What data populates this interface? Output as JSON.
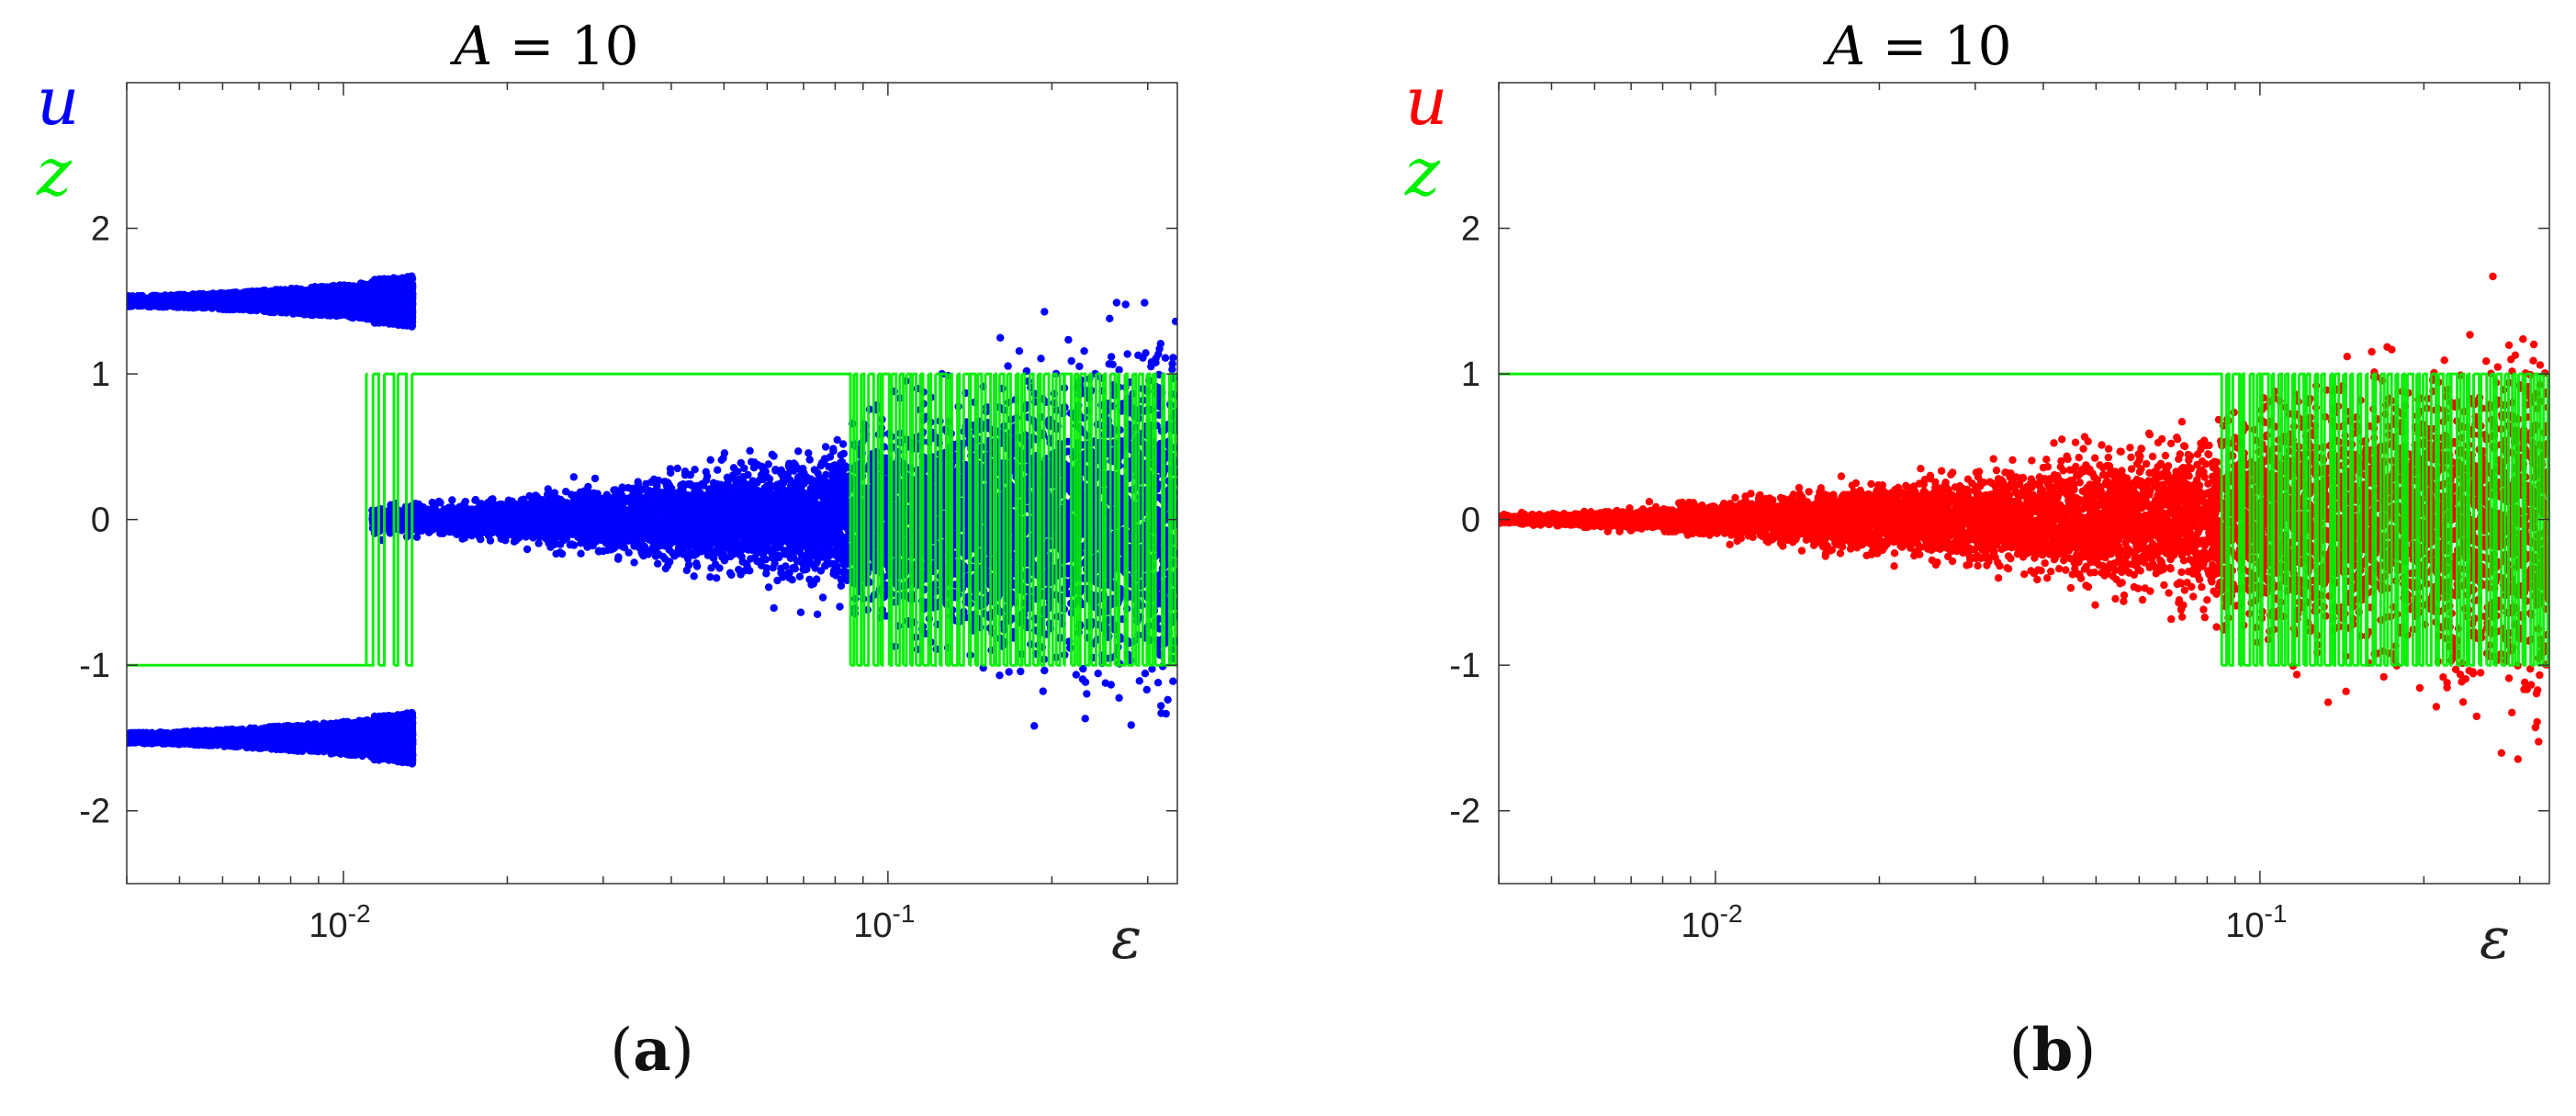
{
  "chart_data": [
    {
      "type": "scatter",
      "panel": "a",
      "caption": "(a)",
      "title": "A = 10",
      "title_parts": {
        "var": "A",
        "eq": " = ",
        "val": "10"
      },
      "ylabel_series": [
        "u",
        "z"
      ],
      "xlabel": "ε",
      "x_scale": "log",
      "xlim": [
        0.004,
        0.34
      ],
      "ylim": [
        -2.5,
        3
      ],
      "x_tick_labels": [
        {
          "base": "10",
          "exp": "-2",
          "value": 0.01
        },
        {
          "base": "10",
          "exp": "-1",
          "value": 0.1
        }
      ],
      "y_tick_labels": [
        {
          "label": "2",
          "value": 2
        },
        {
          "label": "1",
          "value": 1
        },
        {
          "label": "0",
          "value": 0
        },
        {
          "label": "-1",
          "value": -1
        },
        {
          "label": "-2",
          "value": -2
        }
      ],
      "grid": false,
      "series": [
        {
          "name": "u",
          "color": "#0000ff",
          "kind": "points",
          "regimes": [
            {
              "x_range": [
                0.004,
                0.0113
              ],
              "branches": [
                1.5,
                -1.5
              ],
              "spread_start": 0.06,
              "spread_end": 0.22
            },
            {
              "x_range": [
                0.0113,
                0.0135
              ],
              "branches": [
                1.5,
                -1.5
              ],
              "spread_start": 0.25,
              "spread_end": 0.3,
              "sparse": true
            },
            {
              "x_range": [
                0.0113,
                0.34
              ],
              "branches": [
                0.0
              ],
              "spread_start": 0.08,
              "spread_end": 1.1,
              "chaotic_from": 0.085
            }
          ]
        },
        {
          "name": "z",
          "color": "#00ee00",
          "kind": "step",
          "levels": [
            -1,
            1
          ],
          "segments": [
            {
              "x_range": [
                0.004,
                0.011
              ],
              "value": -1
            },
            {
              "x_range": [
                0.011,
                0.0135
              ],
              "value": "switching"
            },
            {
              "x_range": [
                0.0135,
                0.085
              ],
              "value": 1
            },
            {
              "x_range": [
                0.085,
                0.34
              ],
              "value": "switching"
            }
          ]
        }
      ]
    },
    {
      "type": "scatter",
      "panel": "b",
      "caption": "(b)",
      "title": "A = 10",
      "title_parts": {
        "var": "A",
        "eq": " = ",
        "val": "10"
      },
      "ylabel_series": [
        "u",
        "z"
      ],
      "xlabel": "ε",
      "x_scale": "log",
      "xlim": [
        0.004,
        0.34
      ],
      "ylim": [
        -2.5,
        3
      ],
      "x_tick_labels": [
        {
          "base": "10",
          "exp": "-2",
          "value": 0.01
        },
        {
          "base": "10",
          "exp": "-1",
          "value": 0.1
        }
      ],
      "y_tick_labels": [
        {
          "label": "2",
          "value": 2
        },
        {
          "label": "1",
          "value": 1
        },
        {
          "label": "0",
          "value": 0
        },
        {
          "label": "-1",
          "value": -1
        },
        {
          "label": "-2",
          "value": -2
        }
      ],
      "grid": false,
      "series": [
        {
          "name": "u",
          "color": "#ff0000",
          "kind": "points",
          "regimes": [
            {
              "x_range": [
                0.004,
                0.34
              ],
              "branches": [
                0.0
              ],
              "spread_start": 0.03,
              "spread_end": 1.1,
              "chaotic_from": 0.085
            }
          ]
        },
        {
          "name": "z",
          "color": "#00ee00",
          "kind": "step",
          "levels": [
            -1,
            1
          ],
          "segments": [
            {
              "x_range": [
                0.004,
                0.085
              ],
              "value": 1
            },
            {
              "x_range": [
                0.085,
                0.34
              ],
              "value": "switching"
            }
          ]
        }
      ]
    }
  ]
}
